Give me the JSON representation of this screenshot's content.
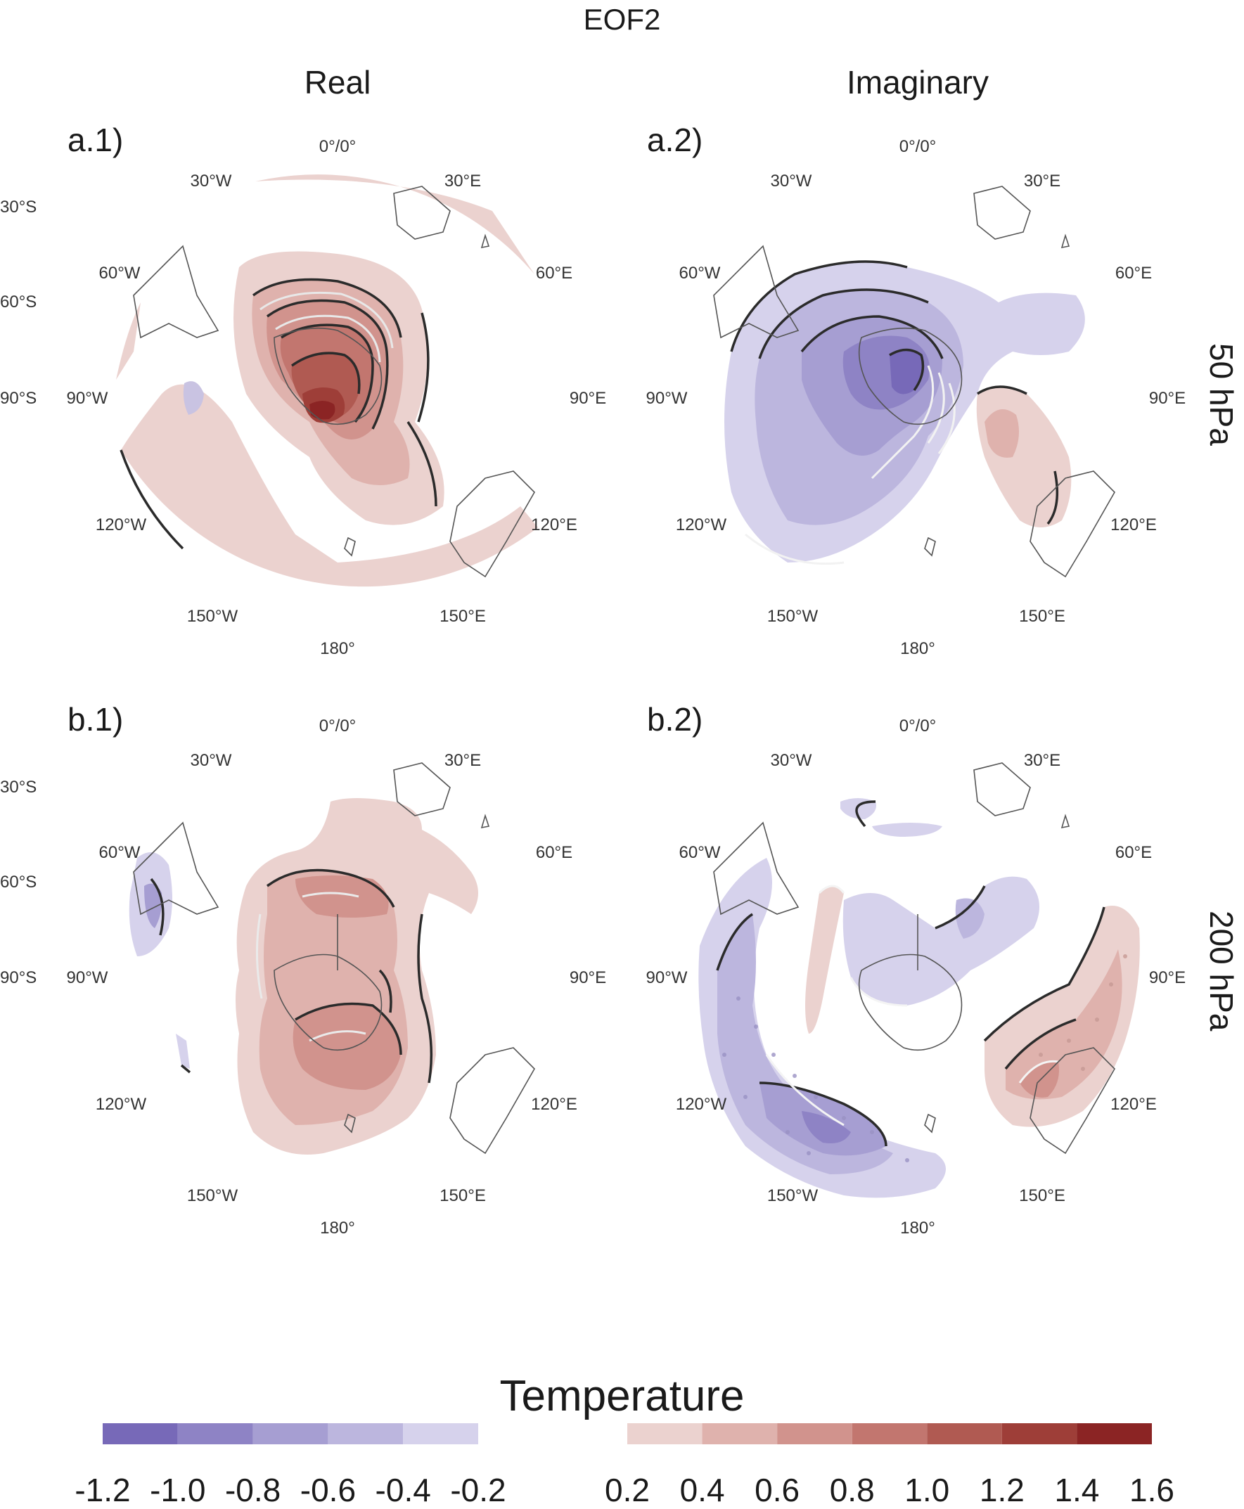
{
  "title": "EOF2",
  "columns": [
    "Real",
    "Imaginary"
  ],
  "rows": [
    "50 hPa",
    "200 hPa"
  ],
  "panels": [
    {
      "id": "a.1)"
    },
    {
      "id": "a.2)"
    },
    {
      "id": "b.1)"
    },
    {
      "id": "b.2)"
    }
  ],
  "map_labels": {
    "top": "0°/0°",
    "lon_30w": "30°W",
    "lon_30e": "30°E",
    "lon_60w": "60°W",
    "lon_60e": "60°E",
    "lon_90w": "90°W",
    "lon_90e": "90°E",
    "lon_120w": "120°W",
    "lon_120e": "120°E",
    "lon_150w": "150°W",
    "lon_150e": "150°E",
    "bottom": "180°",
    "lat_30s": "30°S",
    "lat_60s": "60°S",
    "lat_90s": "90°S"
  },
  "colorbar": {
    "title": "Temperature",
    "negative": {
      "ticks": [
        "-1.2",
        "-1.0",
        "-0.8",
        "-0.6",
        "-0.4",
        "-0.2"
      ],
      "colors": [
        "#7769b8",
        "#8e83c5",
        "#a69ed2",
        "#bcb6de",
        "#d6d2ec"
      ]
    },
    "positive": {
      "ticks": [
        "0.2",
        "0.4",
        "0.6",
        "0.8",
        "1.0",
        "1.2",
        "1.4",
        "1.6"
      ],
      "colors": [
        "#ebd2cf",
        "#dfb2ad",
        "#d1938d",
        "#c2766f",
        "#b05a52",
        "#9e3e38",
        "#8b2424"
      ]
    }
  },
  "chart_data": {
    "type": "heatmap",
    "projection": "south polar stereographic",
    "variable": "Temperature",
    "levels": [
      -1.2,
      -1.0,
      -0.8,
      -0.6,
      -0.4,
      -0.2,
      0.2,
      0.4,
      0.6,
      0.8,
      1.0,
      1.2,
      1.4,
      1.6
    ],
    "panels": [
      {
        "label": "a.1)",
        "component": "Real",
        "level": "50 hPa",
        "min": 0.2,
        "max": 1.6
      },
      {
        "label": "a.2)",
        "component": "Imaginary",
        "level": "50 hPa",
        "min": -1.2,
        "max": 0.6
      },
      {
        "label": "b.1)",
        "component": "Real",
        "level": "200 hPa",
        "min": -0.6,
        "max": 1.0
      },
      {
        "label": "b.2)",
        "component": "Imaginary",
        "level": "200 hPa",
        "min": -1.0,
        "max": 1.0
      }
    ]
  }
}
